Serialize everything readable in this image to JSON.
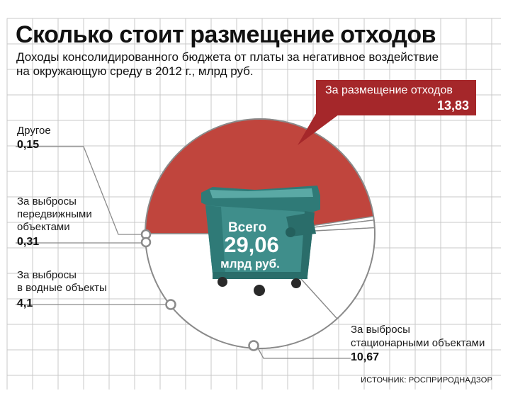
{
  "header": {
    "title": "Сколько стоит размещение отходов",
    "subtitle_line1": "Доходы консолидированного бюджета от платы за негативное воздействие",
    "subtitle_line2": "на окружающую среду в 2012 г., млрд руб."
  },
  "total": {
    "line1": "Всего",
    "value": "29,06",
    "unit": "млрд руб."
  },
  "source": "ИСТОЧНИК: РОСПРИРОДНАДЗОР",
  "colors": {
    "accent_red": "#c0453d",
    "callout_red": "#a5272a",
    "slice_white": "#ffffff",
    "bin_teal": "#3f8e8b",
    "grid": "#c8c8c8"
  },
  "chart_data": {
    "type": "pie",
    "title": "Сколько стоит размещение отходов",
    "unit": "млрд руб.",
    "total": 29.06,
    "slices": [
      {
        "label": "За размещение отходов",
        "value": 13.83,
        "value_text": "13,83"
      },
      {
        "label": "Другое",
        "value": 0.15,
        "value_text": "0,15"
      },
      {
        "label": "За выбросы передвижными объектами",
        "value": 0.31,
        "value_text": "0,31"
      },
      {
        "label": "За выбросы в водные объекты",
        "value": 4.1,
        "value_text": "4,1"
      },
      {
        "label": "За выбросы стационарными объектами",
        "value": 10.67,
        "value_text": "10,67"
      }
    ],
    "label_lines": {
      "waste": [
        "За размещение отходов"
      ],
      "other": [
        "Другое"
      ],
      "mobile": [
        "За выбросы",
        "передвижными",
        "объектами"
      ],
      "water": [
        "За выбросы",
        "в водные объекты"
      ],
      "stationary": [
        "За выбросы",
        "стационарными объектами"
      ]
    }
  }
}
